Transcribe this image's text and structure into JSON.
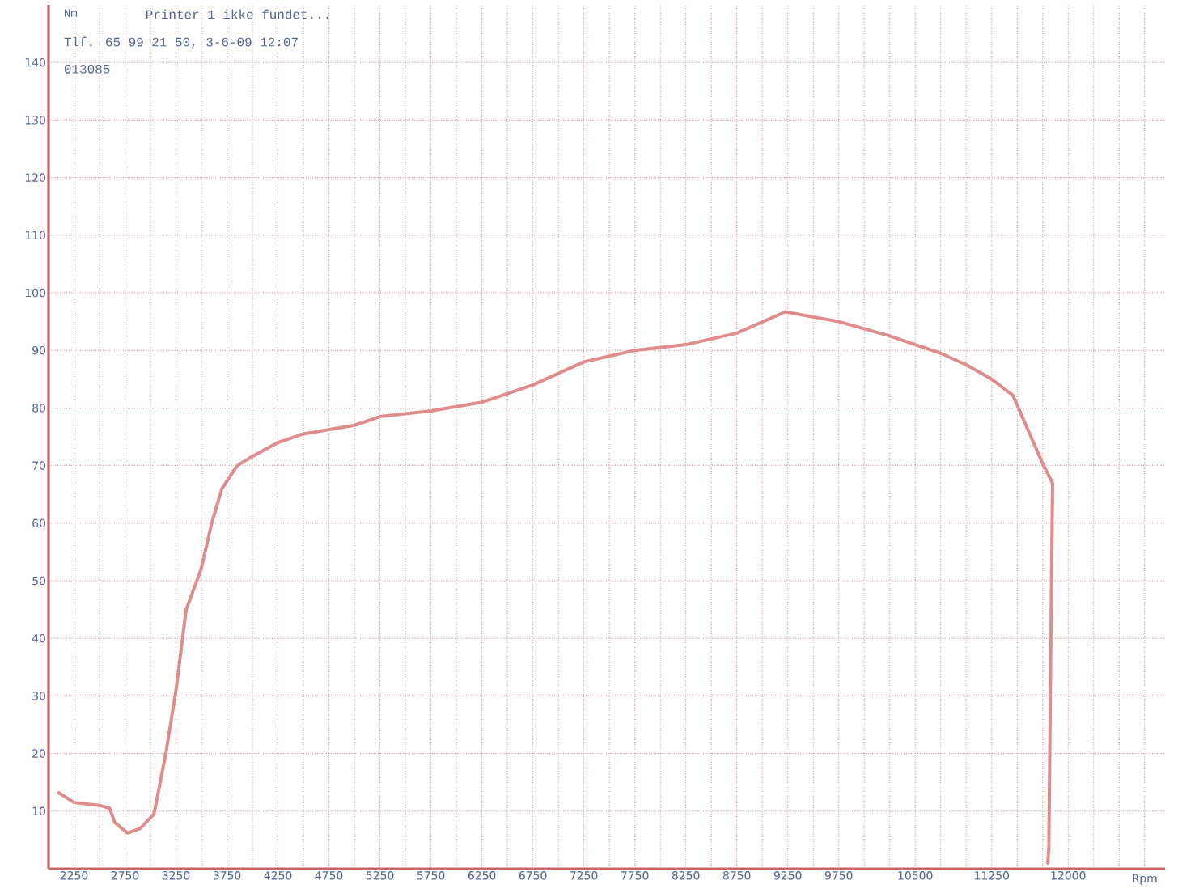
{
  "chart_data": {
    "type": "line",
    "xlabel": "Rpm",
    "ylabel": "Nm",
    "annotations": [
      "Printer 1 ikke fundet...",
      "Tlf. 65 99 21 50, 3-6-09  12:07",
      "013085"
    ],
    "x": [
      2100,
      2250,
      2500,
      2600,
      2650,
      2775,
      2900,
      3034,
      3150,
      3250,
      3350,
      3496,
      3600,
      3700,
      3850,
      4000,
      4250,
      4500,
      5000,
      5250,
      5500,
      5750,
      6250,
      6750,
      7250,
      7500,
      7750,
      8250,
      8750,
      9225,
      9750,
      10250,
      10500,
      10750,
      11000,
      11250,
      11458,
      11743,
      11847,
      11830,
      11810,
      11800
    ],
    "values": [
      13.2,
      11.5,
      11,
      10.5,
      8,
      6.2,
      7,
      9.5,
      20,
      31,
      45,
      52,
      60,
      66,
      70,
      71.6,
      74,
      75.5,
      77,
      78.5,
      79,
      79.5,
      81,
      84,
      88,
      89,
      90,
      91,
      93,
      96.7,
      95,
      92.5,
      91,
      89.5,
      87.5,
      85,
      82.2,
      70.6,
      66.9,
      40,
      3.4,
      1
    ],
    "color": "#de8c8c",
    "line_style": "solid",
    "marker": "none",
    "grid": true,
    "xlim": [
      2000,
      12950
    ],
    "ylim": [
      0,
      150
    ],
    "yticks": [
      10,
      20,
      30,
      40,
      50,
      60,
      70,
      80,
      90,
      100,
      110,
      120,
      130,
      140
    ],
    "xticks": [
      2250,
      {
        "value": 2500,
        "label": null
      },
      2750,
      {
        "value": 3000,
        "label": null
      },
      3250,
      {
        "value": 3500,
        "label": null
      },
      3750,
      {
        "value": 4000,
        "label": null
      },
      4250,
      {
        "value": 4500,
        "label": null
      },
      4750,
      {
        "value": 5000,
        "label": null
      },
      5250,
      {
        "value": 5500,
        "label": null
      },
      5750,
      {
        "value": 6000,
        "label": null
      },
      6250,
      {
        "value": 6500,
        "label": null
      },
      6750,
      {
        "value": 7000,
        "label": null
      },
      7250,
      {
        "value": 7500,
        "label": null
      },
      7750,
      {
        "value": 8000,
        "label": null
      },
      8250,
      {
        "value": 8500,
        "label": null
      },
      8750,
      {
        "value": 9000,
        "label": null
      },
      9250,
      {
        "value": 9500,
        "label": null
      },
      9750,
      {
        "value": 10000,
        "label": null
      },
      {
        "value": 10250,
        "label": null
      },
      10500,
      {
        "value": 10750,
        "label": null
      },
      {
        "value": 11000,
        "label": null
      },
      11250,
      {
        "value": 11500,
        "label": null
      },
      {
        "value": 11750,
        "label": null
      },
      12000,
      {
        "value": 12250,
        "label": null
      },
      {
        "value": 12500,
        "label": null
      },
      {
        "value": 12750,
        "label": null
      }
    ]
  }
}
